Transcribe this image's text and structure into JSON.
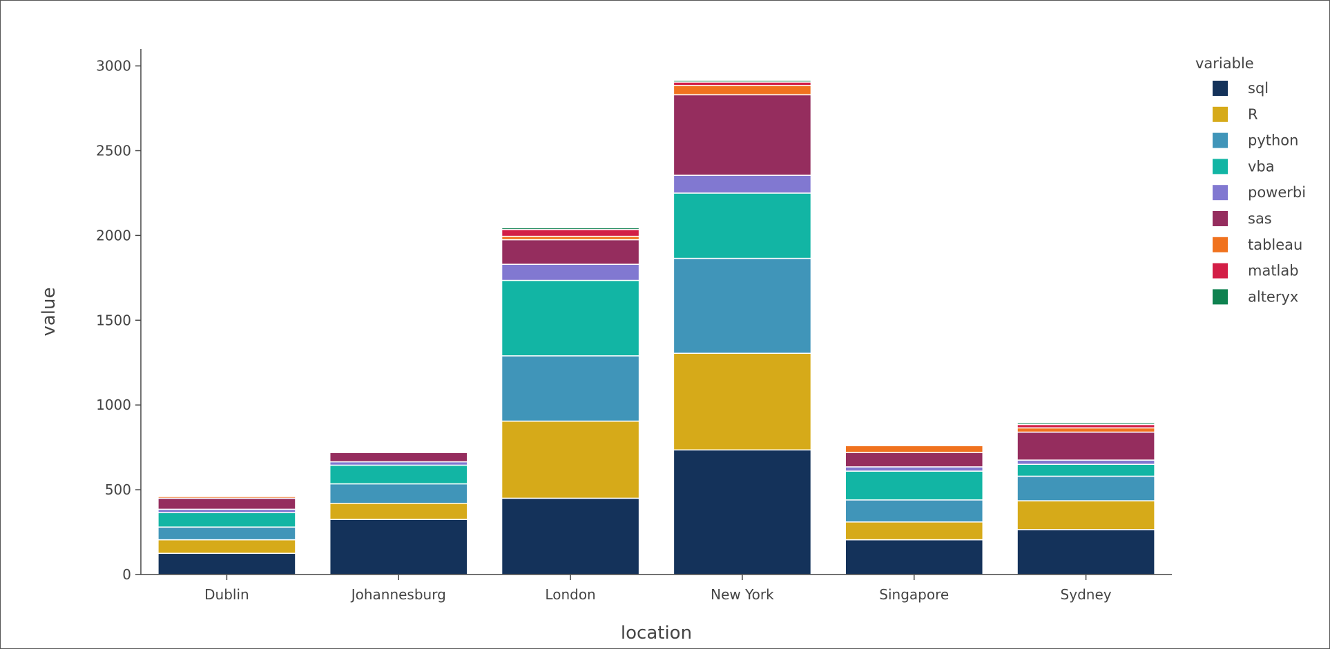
{
  "chart_data": {
    "type": "bar",
    "stacked": true,
    "xlabel": "location",
    "ylabel": "value",
    "ylim": [
      0,
      3100
    ],
    "yticks": [
      0,
      500,
      1000,
      1500,
      2000,
      2500,
      3000
    ],
    "categories": [
      "Dublin",
      "Johannesburg",
      "London",
      "New York",
      "Singapore",
      "Sydney"
    ],
    "grid": false,
    "legend": {
      "title": "variable",
      "position": "right"
    },
    "series": [
      {
        "name": "sql",
        "color": "#14325a",
        "values": [
          125,
          325,
          450,
          735,
          205,
          265
        ]
      },
      {
        "name": "R",
        "color": "#d6aa19",
        "values": [
          80,
          95,
          455,
          570,
          105,
          170
        ]
      },
      {
        "name": "python",
        "color": "#4095b9",
        "values": [
          75,
          115,
          385,
          560,
          130,
          145
        ]
      },
      {
        "name": "vba",
        "color": "#12b5a4",
        "values": [
          85,
          110,
          445,
          385,
          170,
          70
        ]
      },
      {
        "name": "powerbi",
        "color": "#8178d1",
        "values": [
          20,
          20,
          95,
          105,
          25,
          25
        ]
      },
      {
        "name": "sas",
        "color": "#952d5e",
        "values": [
          65,
          55,
          145,
          475,
          85,
          165
        ]
      },
      {
        "name": "tableau",
        "color": "#f0721e",
        "values": [
          10,
          5,
          20,
          55,
          40,
          25
        ]
      },
      {
        "name": "matlab",
        "color": "#d31e46",
        "values": [
          5,
          3,
          40,
          20,
          5,
          20
        ]
      },
      {
        "name": "alteryx",
        "color": "#0f8250",
        "values": [
          2,
          2,
          10,
          10,
          5,
          10
        ]
      }
    ]
  }
}
